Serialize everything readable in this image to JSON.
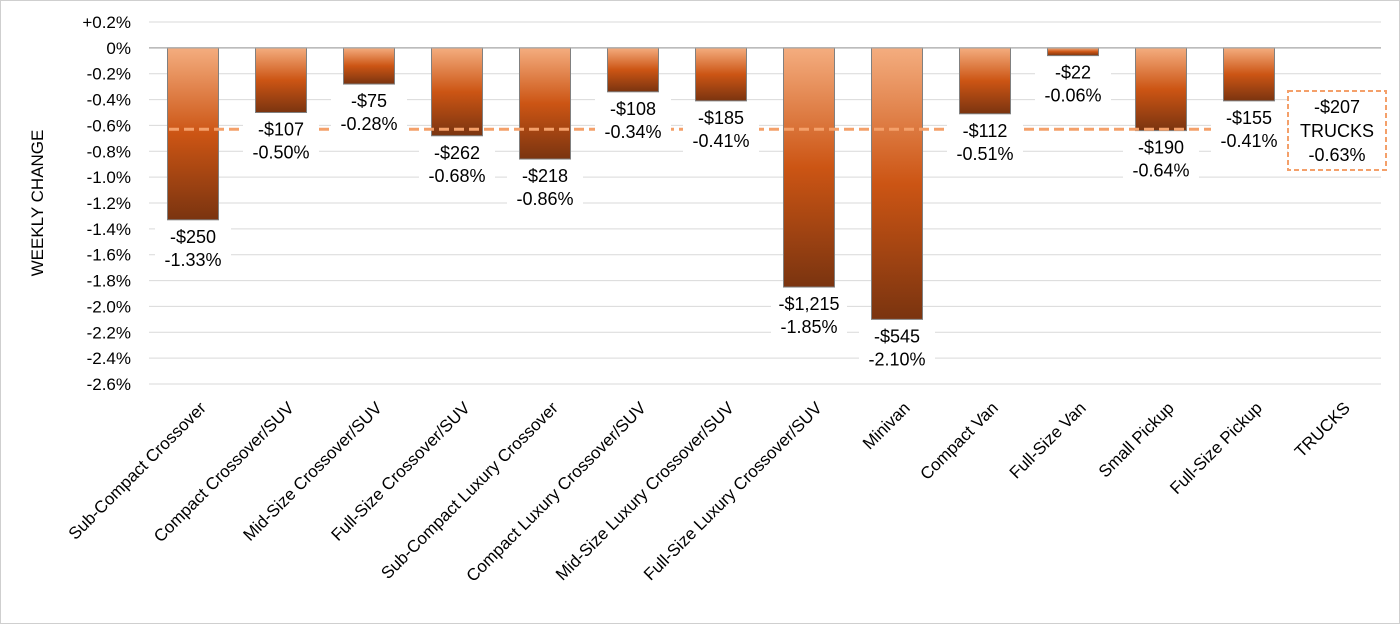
{
  "chart_data": {
    "type": "bar",
    "ylabel": "WEEKLY CHANGE",
    "y_unit": "%",
    "ylim": [
      -2.6,
      0.2
    ],
    "y_ticks": [
      "+0.2%",
      "0%",
      "-0.2%",
      "-0.4%",
      "-0.6%",
      "-0.8%",
      "-1.0%",
      "-1.2%",
      "-1.4%",
      "-1.6%",
      "-1.8%",
      "-2.0%",
      "-2.2%",
      "-2.4%",
      "-2.6%"
    ],
    "grid": true,
    "categories": [
      "Sub-Compact Crossover",
      "Compact Crossover/SUV",
      "Mid-Size Crossover/SUV",
      "Full-Size Crossover/SUV",
      "Sub-Compact Luxury Crossover",
      "Compact Luxury Crossover/SUV",
      "Mid-Size Luxury Crossover/SUV",
      "Full-Size Luxury Crossover/SUV",
      "Minivan",
      "Compact Van",
      "Full-Size Van",
      "Small Pickup",
      "Full-Size Pickup",
      "TRUCKS"
    ],
    "values": [
      -1.33,
      -0.5,
      -0.28,
      -0.68,
      -0.86,
      -0.34,
      -0.41,
      -1.85,
      -2.1,
      -0.51,
      -0.06,
      -0.64,
      -0.41,
      null
    ],
    "dollar_labels": [
      "-$250",
      "-$107",
      "-$75",
      "-$262",
      "-$218",
      "-$108",
      "-$185",
      "-$1,215",
      "-$545",
      "-$112",
      "-$22",
      "-$190",
      "-$155",
      ""
    ],
    "percent_labels": [
      "-1.33%",
      "-0.50%",
      "-0.28%",
      "-0.68%",
      "-0.86%",
      "-0.34%",
      "-0.41%",
      "-1.85%",
      "-2.10%",
      "-0.51%",
      "-0.06%",
      "-0.64%",
      "-0.41%",
      ""
    ],
    "reference_line": {
      "value": -0.63,
      "dollar_label": "-$207",
      "name_label": "TRUCKS",
      "percent_label": "-0.63%",
      "color": "#f4a06a"
    },
    "bar_gradient": [
      "#f4ad7f",
      "#cc5514",
      "#7a3410"
    ],
    "bar_border": "#808080",
    "grid_color": "#d9d9d9"
  }
}
